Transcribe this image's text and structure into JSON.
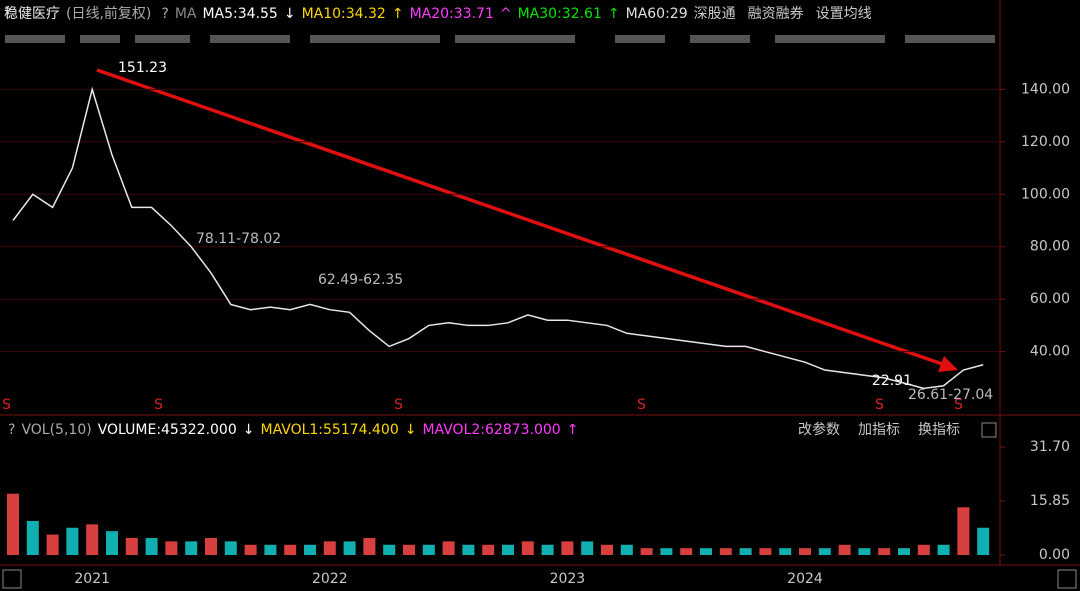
{
  "chart_data": [
    {
      "type": "line",
      "title": "稳健医疗",
      "subtitle": "(日线,前复权)",
      "help": "?",
      "ma_label": "MA",
      "indicators": [
        {
          "text": "MA5:34.55",
          "arrow": "↓",
          "color": "#ffffff"
        },
        {
          "text": "MA10:34.32",
          "arrow": "↑",
          "color": "#ffd700"
        },
        {
          "text": "MA20:33.71",
          "arrow": "^",
          "color": "#ff3cff"
        },
        {
          "text": "MA30:32.61",
          "arrow": "↑",
          "color": "#00e600"
        },
        {
          "text": "MA60:29",
          "arrow": "",
          "color": "#e0e0e0"
        }
      ],
      "toolbar": [
        "深股通",
        "融资融券",
        "设置均线"
      ],
      "categories": [
        null,
        null,
        null,
        null,
        "2021",
        null,
        null,
        null,
        null,
        null,
        null,
        null,
        null,
        null,
        null,
        null,
        "2022",
        null,
        null,
        null,
        null,
        null,
        null,
        null,
        null,
        null,
        null,
        null,
        "2023",
        null,
        null,
        null,
        null,
        null,
        null,
        null,
        null,
        null,
        null,
        null,
        "2024",
        null,
        null,
        null,
        null,
        null,
        null,
        null,
        null,
        null
      ],
      "values": [
        90,
        100,
        95,
        110,
        140,
        115,
        95,
        95,
        88,
        80,
        70,
        58,
        56,
        57,
        56,
        58,
        56,
        55,
        48,
        42,
        45,
        50,
        51,
        50,
        50,
        51,
        54,
        52,
        52,
        51,
        50,
        47,
        46,
        45,
        44,
        43,
        42,
        42,
        40,
        38,
        36,
        33,
        32,
        31,
        30,
        28,
        26,
        27,
        33,
        35
      ],
      "color": "#e8e8e8",
      "annotations": [
        "151.23",
        "78.11-78.02",
        "62.49-62.35",
        "22.91",
        "26.61-27.04"
      ],
      "ylim": [
        17,
        155
      ],
      "yticks": [
        {
          "value": 140,
          "label": "140.00"
        },
        {
          "value": 120,
          "label": "120.00"
        },
        {
          "value": 100,
          "label": "100.00"
        },
        {
          "value": 80,
          "label": "80.00"
        },
        {
          "value": 60,
          "label": "60.00"
        },
        {
          "value": 40,
          "label": "40.00"
        }
      ],
      "grid": true
    },
    {
      "type": "bar",
      "title": "VOL(5,10)",
      "help": "?",
      "indicators": [
        {
          "text": "VOLUME:45322.000",
          "arrow": "↓",
          "color": "#ffffff"
        },
        {
          "text": "MAVOL1:55174.400",
          "arrow": "↓",
          "color": "#ffd700"
        },
        {
          "text": "MAVOL2:62873.000",
          "arrow": "↑",
          "color": "#ff3cff"
        }
      ],
      "toolbar": [
        "改参数",
        "加指标",
        "换指标"
      ],
      "categories": [
        null,
        null,
        null,
        null,
        "2021",
        null,
        null,
        null,
        null,
        null,
        null,
        null,
        null,
        null,
        null,
        null,
        "2022",
        null,
        null,
        null,
        null,
        null,
        null,
        null,
        null,
        null,
        null,
        null,
        "2023",
        null,
        null,
        null,
        null,
        null,
        null,
        null,
        null,
        null,
        null,
        null,
        "2024",
        null,
        null,
        null,
        null,
        null,
        null,
        null,
        null,
        null
      ],
      "values": [
        18,
        10,
        6,
        8,
        9,
        7,
        5,
        5,
        4,
        4,
        5,
        4,
        3,
        3,
        3,
        3,
        4,
        4,
        5,
        3,
        3,
        3,
        4,
        3,
        3,
        3,
        4,
        3,
        4,
        4,
        3,
        3,
        2,
        2,
        2,
        2,
        2,
        2,
        2,
        2,
        2,
        2,
        3,
        2,
        2,
        2,
        3,
        3,
        14,
        8
      ],
      "color": "#d84040",
      "ylim": [
        0,
        31.7
      ],
      "yticks": [
        {
          "value": 31.7,
          "label": "31.70"
        },
        {
          "value": 15.85,
          "label": "15.85"
        },
        {
          "value": 0,
          "label": "0.00"
        }
      ]
    }
  ]
}
